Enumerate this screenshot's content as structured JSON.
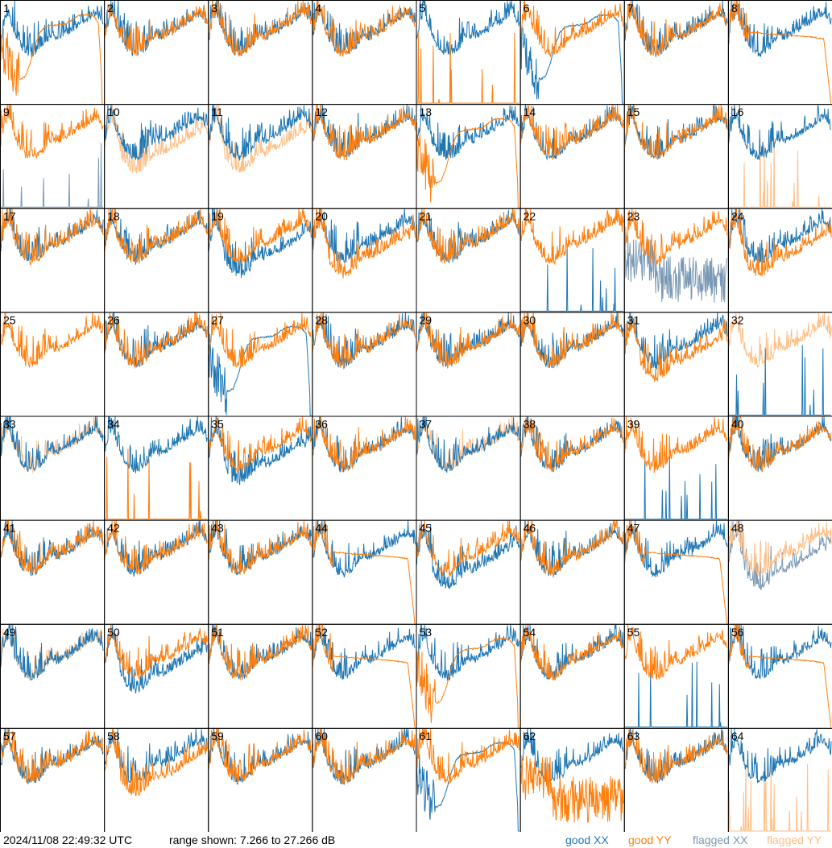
{
  "chart_data": {
    "type": "line",
    "title": "",
    "grid": {
      "columns": 8,
      "rows": 8
    },
    "xlabel": "",
    "ylabel": "",
    "ylim": [
      7.266,
      27.266
    ],
    "units": "dB",
    "base_curve_db": [
      19.5,
      23.5,
      25.0,
      22.0,
      20.0,
      18.5,
      17.5,
      17.0,
      16.8,
      17.2,
      17.8,
      18.5,
      19.8,
      20.5,
      20.0,
      20.3,
      20.8,
      21.0,
      21.5,
      22.2,
      22.6,
      23.0,
      23.6,
      24.2,
      24.6,
      24.0,
      22.5
    ],
    "collapsed_curve_db": [
      19.0,
      17.0,
      15.0,
      13.0,
      12.0,
      12.5,
      15.0,
      18.5,
      21.0,
      22.0,
      22.3,
      22.4,
      22.5,
      22.6,
      23.0,
      23.8,
      24.3,
      24.4,
      24.4,
      24.2,
      23.0,
      7.0
    ],
    "flat_curve_db": [
      21.0,
      21.0,
      20.8,
      20.7,
      20.6,
      20.5,
      20.4,
      20.3,
      20.2,
      20.0,
      19.8,
      7.0
    ],
    "series_styles": {
      "good XX": "#1f77b4",
      "good YY": "#ff7f0e",
      "flagged XX": "#7a98b5",
      "flagged YY": "#ffbf86"
    },
    "panels": [
      {
        "id": "1",
        "xx": "good/normal",
        "yy": "good/collapsed"
      },
      {
        "id": "2",
        "xx": "good/normal",
        "yy": "good/normal"
      },
      {
        "id": "3",
        "xx": "good/normal",
        "yy": "good/normal"
      },
      {
        "id": "4",
        "xx": "good/normal",
        "yy": "good/normal"
      },
      {
        "id": "5",
        "xx": "good/normal",
        "yy": "good/spikes"
      },
      {
        "id": "6",
        "xx": "good/collapsed",
        "yy": "good/normal"
      },
      {
        "id": "7",
        "xx": "good/normal",
        "yy": "good/normal"
      },
      {
        "id": "8",
        "xx": "good/normal",
        "yy": "good/flat"
      },
      {
        "id": "9",
        "xx": "flagged/spikes",
        "yy": "good/normal"
      },
      {
        "id": "10",
        "xx": "good/normal",
        "yy": "flagged/low"
      },
      {
        "id": "11",
        "xx": "good/normal",
        "yy": "flagged/low"
      },
      {
        "id": "12",
        "xx": "good/normal",
        "yy": "good/normal"
      },
      {
        "id": "13",
        "xx": "good/normal",
        "yy": "good/collapsed"
      },
      {
        "id": "14",
        "xx": "good/normal",
        "yy": "good/normal"
      },
      {
        "id": "15",
        "xx": "good/normal",
        "yy": "good/normal"
      },
      {
        "id": "16",
        "xx": "good/normal",
        "yy": "flagged/spikes"
      },
      {
        "id": "17",
        "xx": "good/normal",
        "yy": "good/normal"
      },
      {
        "id": "18",
        "xx": "good/normal",
        "yy": "good/normal"
      },
      {
        "id": "19",
        "xx": "good/low",
        "yy": "good/normal"
      },
      {
        "id": "20",
        "xx": "good/normal",
        "yy": "good/low"
      },
      {
        "id": "21",
        "xx": "good/normal",
        "yy": "good/normal"
      },
      {
        "id": "22",
        "xx": "good/spikes",
        "yy": "good/normal"
      },
      {
        "id": "23",
        "xx": "flagged/noise",
        "yy": "good/normal"
      },
      {
        "id": "24",
        "xx": "good/normal",
        "yy": "good/low"
      },
      {
        "id": "25",
        "xx": "none",
        "yy": "good/normal"
      },
      {
        "id": "26",
        "xx": "good/normal",
        "yy": "good/normal"
      },
      {
        "id": "27",
        "xx": "good/collapsed",
        "yy": "good/normal"
      },
      {
        "id": "28",
        "xx": "good/normal",
        "yy": "good/normal"
      },
      {
        "id": "29",
        "xx": "good/normal",
        "yy": "good/normal"
      },
      {
        "id": "30",
        "xx": "good/normal",
        "yy": "good/normal"
      },
      {
        "id": "31",
        "xx": "good/normal",
        "yy": "good/low"
      },
      {
        "id": "32",
        "xx": "good/spikes",
        "yy": "flagged/normal"
      },
      {
        "id": "33",
        "xx": "good/normal",
        "yy": "flagged/normal"
      },
      {
        "id": "34",
        "xx": "good/normal",
        "yy": "good/spikes"
      },
      {
        "id": "35",
        "xx": "good/low",
        "yy": "good/normal"
      },
      {
        "id": "36",
        "xx": "good/normal",
        "yy": "good/normal"
      },
      {
        "id": "37",
        "xx": "good/normal",
        "yy": "flagged/normal"
      },
      {
        "id": "38",
        "xx": "good/normal",
        "yy": "good/normal"
      },
      {
        "id": "39",
        "xx": "good/spikes",
        "yy": "good/normal"
      },
      {
        "id": "40",
        "xx": "good/normal",
        "yy": "good/normal"
      },
      {
        "id": "41",
        "xx": "good/normal",
        "yy": "good/normal"
      },
      {
        "id": "42",
        "xx": "good/normal",
        "yy": "good/normal"
      },
      {
        "id": "43",
        "xx": "good/normal",
        "yy": "good/normal"
      },
      {
        "id": "44",
        "xx": "good/normal",
        "yy": "good/flat"
      },
      {
        "id": "45",
        "xx": "good/low",
        "yy": "good/normal"
      },
      {
        "id": "46",
        "xx": "good/normal",
        "yy": "good/normal"
      },
      {
        "id": "47",
        "xx": "good/normal",
        "yy": "good/flat"
      },
      {
        "id": "48",
        "xx": "flagged/low",
        "yy": "flagged/normal"
      },
      {
        "id": "49",
        "xx": "good/normal",
        "yy": "flagged/normal"
      },
      {
        "id": "50",
        "xx": "good/low",
        "yy": "good/normal"
      },
      {
        "id": "51",
        "xx": "good/normal",
        "yy": "good/normal"
      },
      {
        "id": "52",
        "xx": "good/normal",
        "yy": "good/flat"
      },
      {
        "id": "53",
        "xx": "good/normal",
        "yy": "good/collapsed"
      },
      {
        "id": "54",
        "xx": "good/normal",
        "yy": "good/normal"
      },
      {
        "id": "55",
        "xx": "good/spikes",
        "yy": "good/normal"
      },
      {
        "id": "56",
        "xx": "good/normal",
        "yy": "good/flat"
      },
      {
        "id": "57",
        "xx": "good/normal",
        "yy": "good/normal"
      },
      {
        "id": "58",
        "xx": "good/normal",
        "yy": "good/low"
      },
      {
        "id": "59",
        "xx": "good/normal",
        "yy": "good/normal"
      },
      {
        "id": "60",
        "xx": "good/normal",
        "yy": "good/normal"
      },
      {
        "id": "61",
        "xx": "good/collapsed",
        "yy": "good/normal"
      },
      {
        "id": "62",
        "xx": "good/normal",
        "yy": "good/noise"
      },
      {
        "id": "63",
        "xx": "good/normal",
        "yy": "good/normal"
      },
      {
        "id": "64",
        "xx": "good/normal",
        "yy": "flagged/spikes"
      }
    ],
    "legend": {
      "placement": "bottom-right",
      "entries": [
        "good XX",
        "good YY",
        "flagged XX",
        "flagged YY"
      ]
    }
  },
  "footer": {
    "timestamp": "2024/11/08 22:49:32 UTC",
    "range_text": "range shown: 7.266 to 27.266 dB",
    "legend": {
      "good_xx": "good XX",
      "good_yy": "good YY",
      "flagged_xx": "flagged XX",
      "flagged_yy": "flagged YY"
    }
  }
}
